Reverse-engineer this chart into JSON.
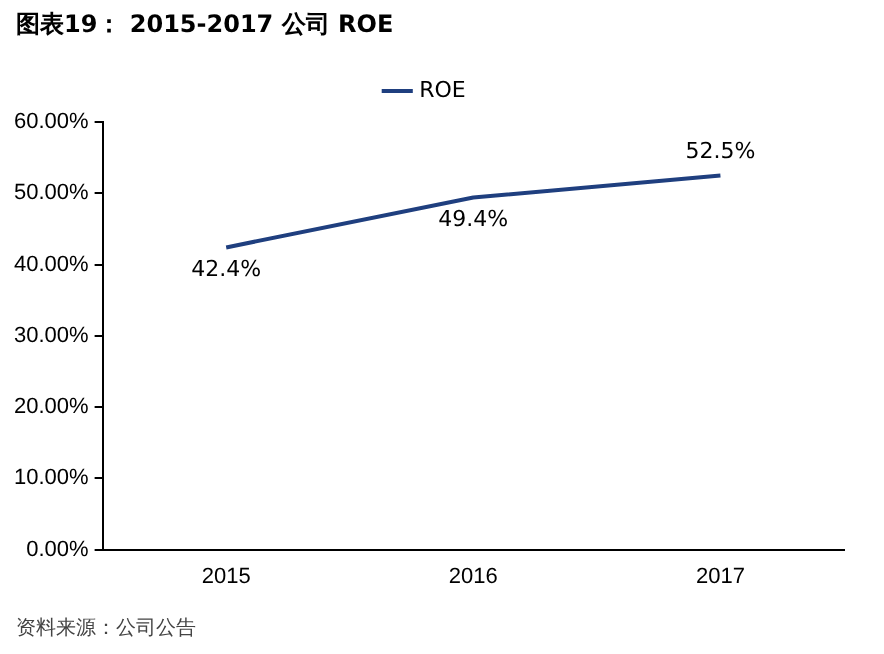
{
  "chart_data": {
    "type": "line",
    "title": "图表19：  2015-2017 公司 ROE",
    "categories": [
      "2015",
      "2016",
      "2017"
    ],
    "series": [
      {
        "name": "ROE",
        "color": "#1f3f7f",
        "values": [
          42.4,
          49.4,
          52.5
        ],
        "value_labels": [
          "42.4%",
          "49.4%",
          "52.5%"
        ]
      }
    ],
    "ylim": [
      0,
      60
    ],
    "yticks": [
      {
        "value": 0,
        "label": "0.00%"
      },
      {
        "value": 10,
        "label": "10.00%"
      },
      {
        "value": 20,
        "label": "20.00%"
      },
      {
        "value": 30,
        "label": "30.00%"
      },
      {
        "value": 40,
        "label": "40.00%"
      },
      {
        "value": 50,
        "label": "50.00%"
      },
      {
        "value": 60,
        "label": "60.00%"
      }
    ],
    "grid": false,
    "legend": "top",
    "marker": "none",
    "line_style": "solid",
    "annotations": [
      "资料来源：公司公告"
    ]
  }
}
